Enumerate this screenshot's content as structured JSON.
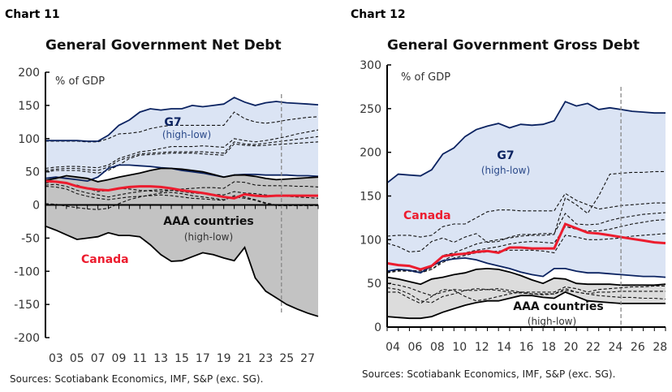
{
  "chart_data": [
    {
      "type": "area",
      "chart_label": "Chart 11",
      "title": "General Government Net Debt",
      "unit_label": "% of GDP",
      "source": "Sources: Scotiabank Economics, IMF, S&P (exc. SG).",
      "xlim": [
        2002,
        2028
      ],
      "ylim": [
        -200,
        200
      ],
      "yticks": [
        200,
        150,
        100,
        50,
        0,
        -50,
        -100,
        -150,
        -200
      ],
      "xtick_labels": [
        "03",
        "05",
        "07",
        "09",
        "11",
        "13",
        "15",
        "17",
        "19",
        "21",
        "23",
        "25",
        "27"
      ],
      "xtick_years": [
        2003,
        2005,
        2007,
        2009,
        2011,
        2013,
        2015,
        2017,
        2019,
        2021,
        2023,
        2025,
        2027
      ],
      "forecast_line_x": 2024.5,
      "x": [
        2002,
        2003,
        2004,
        2005,
        2006,
        2007,
        2008,
        2009,
        2010,
        2011,
        2012,
        2013,
        2014,
        2015,
        2016,
        2017,
        2018,
        2019,
        2020,
        2021,
        2022,
        2023,
        2024,
        2025,
        2026,
        2027,
        2028
      ],
      "bands": [
        {
          "name": "G7",
          "sublabel": "(high-low)",
          "color": "#dbe4f4",
          "line_color": "#0b2361",
          "high": [
            97,
            97,
            97,
            97,
            96,
            96,
            105,
            120,
            128,
            140,
            145,
            143,
            145,
            145,
            150,
            148,
            150,
            152,
            162,
            155,
            150,
            154,
            156,
            154,
            153,
            152,
            151
          ],
          "low": [
            40,
            42,
            40,
            38,
            36,
            42,
            55,
            60,
            60,
            59,
            58,
            56,
            55,
            52,
            50,
            48,
            45,
            42,
            45,
            46,
            46,
            45,
            45,
            45,
            44,
            44,
            43
          ]
        },
        {
          "name": "AAA countries",
          "sublabel": "(high-low)",
          "color": "#c3c3c3",
          "line_color": "#000000",
          "high": [
            37,
            40,
            44,
            42,
            40,
            35,
            38,
            42,
            45,
            48,
            52,
            55,
            55,
            54,
            52,
            50,
            46,
            42,
            45,
            45,
            43,
            40,
            38,
            39,
            40,
            41,
            42
          ],
          "low": [
            -32,
            -38,
            -45,
            -52,
            -50,
            -48,
            -42,
            -46,
            -46,
            -48,
            -60,
            -75,
            -85,
            -84,
            -78,
            -72,
            -75,
            -80,
            -84,
            -64,
            -110,
            -130,
            -140,
            -150,
            -157,
            -163,
            -168
          ]
        }
      ],
      "dashed_series": [
        [
          55,
          57,
          58,
          58,
          57,
          56,
          60,
          70,
          75,
          80,
          82,
          85,
          88,
          88,
          88,
          89,
          88,
          87,
          100,
          97,
          95,
          97,
          100,
          103,
          107,
          110,
          113
        ],
        [
          52,
          54,
          55,
          55,
          53,
          52,
          57,
          67,
          72,
          77,
          78,
          79,
          80,
          80,
          80,
          80,
          79,
          78,
          95,
          92,
          91,
          93,
          95,
          97,
          99,
          101,
          103
        ],
        [
          50,
          52,
          52,
          52,
          50,
          48,
          52,
          60,
          70,
          75,
          76,
          77,
          78,
          78,
          78,
          77,
          76,
          75,
          92,
          90,
          89,
          90,
          91,
          92,
          93,
          94,
          95
        ],
        [
          96,
          96,
          96,
          96,
          95,
          95,
          100,
          107,
          108,
          110,
          115,
          118,
          120,
          120,
          120,
          120,
          120,
          120,
          140,
          130,
          125,
          123,
          125,
          128,
          130,
          132,
          133
        ],
        [
          33,
          35,
          32,
          30,
          25,
          20,
          22,
          25,
          24,
          22,
          21,
          20,
          22,
          24,
          25,
          26,
          26,
          25,
          35,
          34,
          30,
          29,
          29,
          29,
          28,
          28,
          27
        ],
        [
          30,
          31,
          28,
          22,
          18,
          15,
          12,
          15,
          18,
          20,
          22,
          23,
          22,
          20,
          18,
          17,
          16,
          15,
          20,
          18,
          17,
          15,
          14,
          13,
          12,
          11,
          10
        ],
        [
          28,
          27,
          24,
          17,
          13,
          10,
          8,
          10,
          12,
          13,
          14,
          15,
          14,
          12,
          10,
          9,
          8,
          7,
          14,
          12,
          8,
          3,
          0,
          0,
          0,
          0,
          0
        ],
        [
          2,
          1,
          -2,
          -4,
          -6,
          -7,
          -5,
          2,
          8,
          12,
          15,
          18,
          19,
          17,
          14,
          12,
          10,
          8,
          12,
          10,
          7,
          2,
          -1,
          -1,
          -1,
          -1,
          -1
        ]
      ],
      "canada": {
        "name": "Canada",
        "color": "#ec1c2e",
        "values": [
          36,
          35,
          33,
          28,
          25,
          23,
          22,
          25,
          27,
          28,
          28,
          27,
          25,
          22,
          20,
          18,
          15,
          12,
          10,
          16,
          14,
          13,
          14,
          14,
          14,
          14,
          14
        ]
      }
    },
    {
      "type": "area",
      "chart_label": "Chart 12",
      "title": "General Government Gross Debt",
      "unit_label": "% of GDP",
      "source": "Sources: Scotiabank Economics, IMF, S&P (exc. SG).",
      "xlim": [
        2004,
        2029
      ],
      "ylim": [
        0,
        300
      ],
      "yticks": [
        300,
        250,
        200,
        150,
        100,
        50,
        0
      ],
      "xtick_labels": [
        "04",
        "06",
        "08",
        "10",
        "12",
        "14",
        "16",
        "18",
        "20",
        "22",
        "24",
        "26",
        "28"
      ],
      "xtick_years": [
        2004,
        2006,
        2008,
        2010,
        2012,
        2014,
        2016,
        2018,
        2020,
        2022,
        2024,
        2026,
        2028
      ],
      "forecast_line_x": 2025,
      "x": [
        2004,
        2005,
        2006,
        2007,
        2008,
        2009,
        2010,
        2011,
        2012,
        2013,
        2014,
        2015,
        2016,
        2017,
        2018,
        2019,
        2020,
        2021,
        2022,
        2023,
        2024,
        2025,
        2026,
        2027,
        2028,
        2029
      ],
      "bands": [
        {
          "name": "G7",
          "sublabel": "(high-low)",
          "color": "#dbe4f4",
          "line_color": "#0b2361",
          "high": [
            165,
            175,
            174,
            173,
            180,
            198,
            205,
            218,
            226,
            230,
            233,
            228,
            232,
            231,
            232,
            236,
            258,
            253,
            256,
            249,
            251,
            249,
            247,
            246,
            245,
            245
          ],
          "low": [
            64,
            66,
            65,
            62,
            70,
            76,
            78,
            79,
            77,
            73,
            70,
            67,
            63,
            60,
            58,
            67,
            67,
            64,
            62,
            62,
            61,
            60,
            59,
            58,
            58,
            57
          ]
        },
        {
          "name": "AAA countries",
          "sublabel": "(high-low)",
          "color": "#dcdcdc",
          "line_color": "#000000",
          "high": [
            57,
            55,
            52,
            49,
            55,
            57,
            60,
            62,
            66,
            67,
            66,
            63,
            59,
            54,
            50,
            56,
            55,
            50,
            49,
            49,
            49,
            48,
            48,
            48,
            48,
            49
          ],
          "low": [
            12,
            11,
            10,
            10,
            12,
            17,
            21,
            25,
            28,
            30,
            30,
            33,
            36,
            36,
            34,
            33,
            40,
            35,
            30,
            29,
            28,
            27,
            27,
            27,
            27,
            27
          ]
        }
      ],
      "dashed_series": [
        [
          104,
          105,
          105,
          103,
          105,
          115,
          118,
          118,
          125,
          132,
          134,
          134,
          133,
          133,
          133,
          133,
          153,
          145,
          140,
          135,
          137,
          139,
          140,
          141,
          142,
          142
        ],
        [
          96,
          92,
          86,
          87,
          98,
          102,
          97,
          103,
          107,
          97,
          98,
          103,
          106,
          106,
          107,
          107,
          130,
          118,
          117,
          118,
          122,
          125,
          127,
          129,
          130,
          131
        ],
        [
          64,
          66,
          65,
          64,
          68,
          82,
          85,
          90,
          95,
          98,
          100,
          102,
          104,
          105,
          105,
          106,
          148,
          140,
          130,
          150,
          175,
          176,
          177,
          177,
          178,
          178
        ],
        [
          63,
          65,
          65,
          64,
          66,
          76,
          82,
          85,
          88,
          90,
          92,
          95,
          97,
          98,
          97,
          96,
          115,
          112,
          110,
          110,
          112,
          115,
          118,
          120,
          122,
          123
        ],
        [
          62,
          64,
          64,
          62,
          66,
          74,
          79,
          82,
          85,
          86,
          87,
          88,
          88,
          88,
          87,
          85,
          105,
          103,
          100,
          100,
          101,
          102,
          104,
          105,
          106,
          107
        ],
        [
          50,
          48,
          45,
          40,
          36,
          40,
          43,
          42,
          42,
          43,
          44,
          42,
          40,
          40,
          40,
          40,
          46,
          44,
          40,
          43,
          44,
          45,
          46,
          46,
          47,
          47
        ],
        [
          45,
          43,
          38,
          30,
          28,
          35,
          38,
          42,
          44,
          43,
          42,
          40,
          39,
          38,
          38,
          38,
          42,
          40,
          38,
          40,
          40,
          41,
          41,
          41,
          41,
          41
        ],
        [
          40,
          40,
          33,
          27,
          35,
          43,
          42,
          35,
          30,
          32,
          35,
          38,
          40,
          38,
          37,
          38,
          44,
          40,
          38,
          36,
          35,
          34,
          34,
          33,
          33,
          32
        ]
      ],
      "canada": {
        "name": "Canada",
        "color": "#ec1c2e",
        "values": [
          73,
          71,
          70,
          66,
          70,
          81,
          83,
          84,
          86,
          87,
          85,
          91,
          91,
          90,
          90,
          90,
          118,
          113,
          108,
          107,
          105,
          103,
          101,
          99,
          97,
          96
        ]
      }
    }
  ]
}
